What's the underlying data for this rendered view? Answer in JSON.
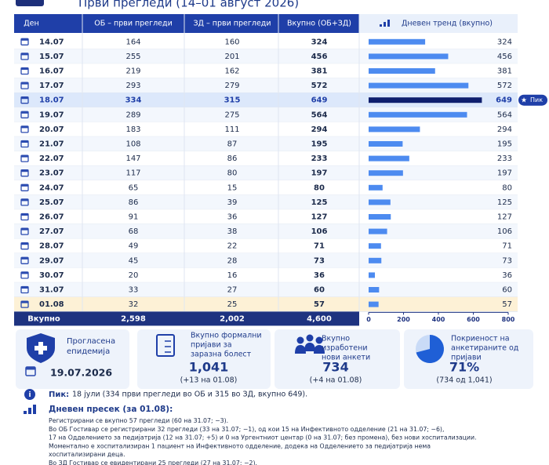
{
  "header": {
    "title": "Први прегледи (14–01 август 2026)"
  },
  "table": {
    "columns": [
      "Ден",
      "ОБ – први прегледи",
      "ЗД – први прегледи",
      "Вкупно (ОБ+ЗД)",
      "Дневен тренд (вкупно)"
    ],
    "rows": [
      [
        "14.07",
        164,
        160,
        324
      ],
      [
        "15.07",
        255,
        201,
        456
      ],
      [
        "16.07",
        219,
        162,
        381
      ],
      [
        "17.07",
        293,
        279,
        572
      ],
      [
        "18.07",
        334,
        315,
        649
      ],
      [
        "19.07",
        289,
        275,
        564
      ],
      [
        "20.07",
        183,
        111,
        294
      ],
      [
        "21.07",
        108,
        87,
        195
      ],
      [
        "22.07",
        147,
        86,
        233
      ],
      [
        "23.07",
        117,
        80,
        197
      ],
      [
        "24.07",
        65,
        15,
        80
      ],
      [
        "25.07",
        86,
        39,
        125
      ],
      [
        "26.07",
        91,
        36,
        127
      ],
      [
        "27.07",
        68,
        38,
        106
      ],
      [
        "28.07",
        49,
        22,
        71
      ],
      [
        "29.07",
        45,
        28,
        73
      ],
      [
        "30.07",
        20,
        16,
        36
      ],
      [
        "31.07",
        33,
        27,
        60
      ],
      [
        "01.08",
        32,
        25,
        57
      ]
    ],
    "total": [
      "Вкупно",
      "2,598",
      "2,002",
      "4,600"
    ]
  },
  "trend": {
    "xlim": [
      0,
      800
    ],
    "xticks": [
      0,
      200,
      400,
      600,
      800
    ],
    "color": "#4d8bf0",
    "peak_color": "#0f1f6e",
    "peak_label": "Пик"
  },
  "cards": [
    {
      "title": [
        "Прогласена",
        "епидемија"
      ],
      "value": "19.07.2026"
    },
    {
      "title": [
        "Вкупно формални",
        "пријави за",
        "заразна болест"
      ],
      "value": "1,041",
      "note": "(+13 на 01.08)"
    },
    {
      "title": [
        "Вкупно",
        "изработени",
        "нови анкети"
      ],
      "value": "734",
      "note": "(+4 на 01.08)"
    },
    {
      "title": [
        "Покриеност на",
        "анкетираните од",
        "пријави"
      ],
      "value": 71,
      "value_label": "71%",
      "note": "(734 од 1,041)"
    }
  ],
  "peak": {
    "label": "Пик:",
    "text": "18 јули (334 први прегледи во ОБ и 315 во ЗД, вкупно 649)."
  },
  "daily": {
    "title": "Дневен пресек (за 01.08):",
    "lines": [
      "Регистрирани се вкупно 57 прегледи (60 на 31.07; −3).",
      "Во ОБ Гостивар се регистрирани 32 прегледи (33 на 31.07; −1), од кои 15 на Инфективното одделение (21 на 31.07; −6),",
      "17 на Одделението за педијатрија (12 на 31.07; +5) и 0 на Ургентниот центар (0 на 31.07; без промена), без нови хоспитализации.",
      "Моментално е хоспитализиран 1 пациент на Инфективното одделение, додека на Одделението за педијатрија нема",
      "хоспитализирани деца.",
      "Во ЗД Гостивар се евидентирани 25 прегледи (27 на 31.07; −2)."
    ]
  }
}
